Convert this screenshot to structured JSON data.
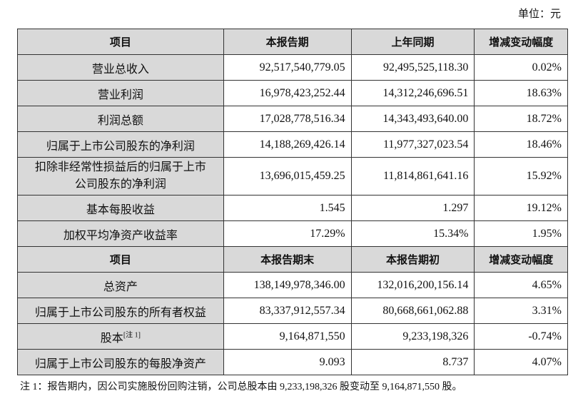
{
  "unit": "单位：元",
  "header1": [
    "项目",
    "本报告期",
    "上年同期",
    "增减变动幅度"
  ],
  "rows1": [
    [
      "营业总收入",
      "92,517,540,779.05",
      "92,495,525,118.30",
      "0.02%"
    ],
    [
      "营业利润",
      "16,978,423,252.44",
      "14,312,246,696.51",
      "18.63%"
    ],
    [
      "利润总额",
      "17,028,778,516.34",
      "14,343,493,640.00",
      "18.72%"
    ],
    [
      "归属于上市公司股东的净利润",
      "14,188,269,426.14",
      "11,977,327,023.54",
      "18.46%"
    ],
    [
      "扣除非经常性损益后的归属于上市公司股东的净利润",
      "13,696,015,459.25",
      "11,814,861,641.16",
      "15.92%"
    ],
    [
      "基本每股收益",
      "1.545",
      "1.297",
      "19.12%"
    ],
    [
      "加权平均净资产收益率",
      "17.29%",
      "15.34%",
      "1.95%"
    ]
  ],
  "header2": [
    "项目",
    "本报告期末",
    "本报告期初",
    "增减变动幅度"
  ],
  "rows2": [
    [
      "总资产",
      "138,149,978,346.00",
      "132,016,200,156.14",
      "4.65%"
    ],
    [
      "归属于上市公司股东的所有者权益",
      "83,337,912,557.34",
      "80,668,661,062.88",
      "3.31%"
    ],
    [
      "股本",
      "9,164,871,550",
      "9,233,198,326",
      "-0.74%"
    ],
    [
      "归属于上市公司股东的每股净资产",
      "9.093",
      "8.737",
      "4.07%"
    ]
  ],
  "share_capital_note_ref": "[注 1]",
  "note": "注 1：报告期内，因公司实施股份回购注销，公司总股本由 9,233,198,326 股变动至 9,164,871,550 股。"
}
